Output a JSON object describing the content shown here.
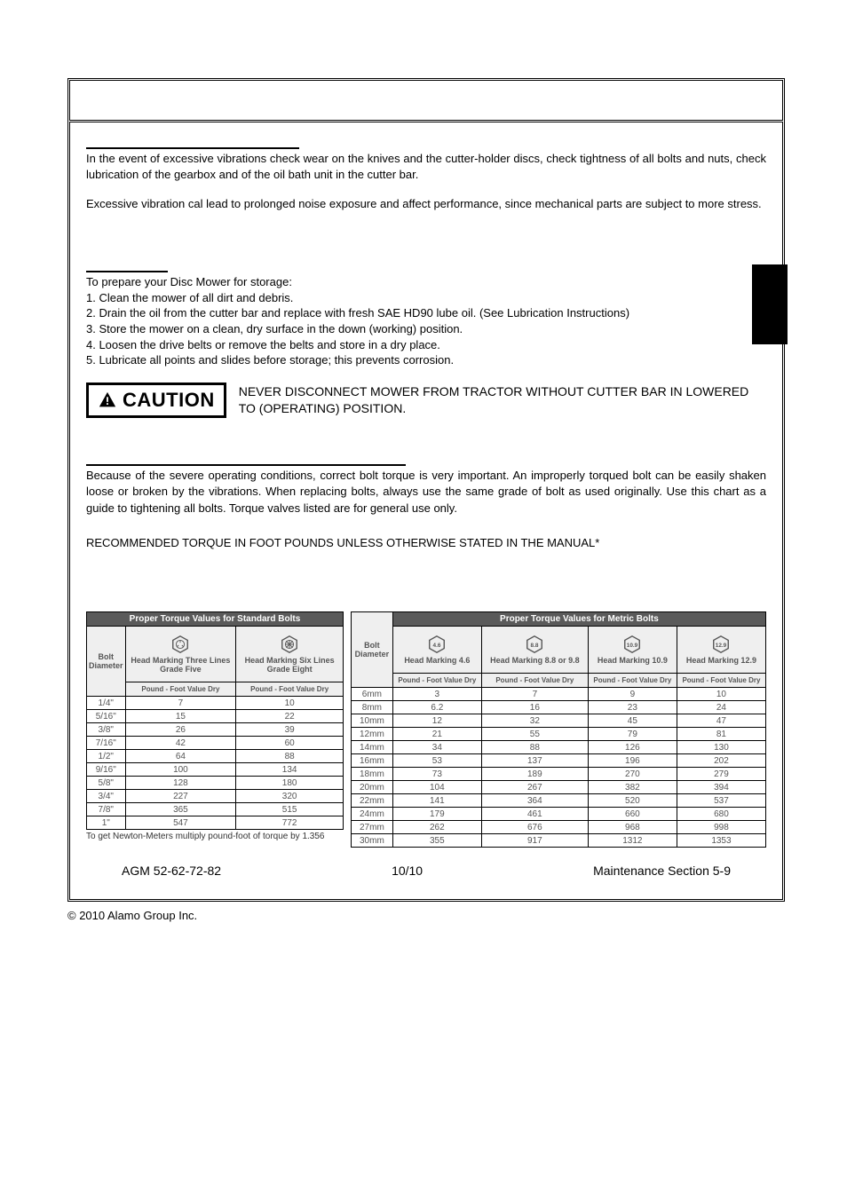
{
  "section_vibrations": {
    "para1": "In the event of excessive vibrations check wear on the knives and the cutter-holder discs, check tightness of all bolts and nuts, check lubrication of the gearbox and of the oil bath unit in the cutter bar.",
    "para2": "Excessive vibration cal lead to prolonged noise exposure and affect performance, since mechanical parts are subject to more stress."
  },
  "section_storage": {
    "intro": "To prepare your Disc Mower for storage:",
    "items": [
      "1. Clean the mower of all dirt and debris.",
      "2. Drain the oil from the cutter bar and replace with fresh SAE HD90 lube oil. (See Lubrication Instructions)",
      "3. Store the mower on a clean, dry surface in the down (working) position.",
      "4. Loosen the drive belts or remove the belts and store in a dry place.",
      "5. Lubricate all points and slides before storage; this prevents corrosion."
    ]
  },
  "caution": {
    "label": "CAUTION",
    "text": "NEVER DISCONNECT MOWER FROM TRACTOR WITHOUT CUTTER BAR IN LOWERED TO (OPERATING) POSITION."
  },
  "section_torque": {
    "para": "Because of the severe operating conditions, correct bolt torque is very important. An improperly torqued bolt can be easily shaken loose or broken by the vibrations. When replacing bolts, always use the same grade of bolt as used originally. Use this chart as a guide to tightening all bolts. Torque valves listed are for general use only.",
    "heading": "RECOMMENDED TORQUE IN FOOT POUNDS UNLESS OTHERWISE STATED IN THE MANUAL*"
  },
  "std_table": {
    "title": "Proper Torque Values for Standard Bolts",
    "col_dia": "Bolt\nDiameter",
    "col1_h": "Head Marking Three Lines Grade Five",
    "col2_h": "Head Marking Six Lines Grade Eight",
    "sub": "Pound - Foot Value Dry",
    "rows": [
      {
        "d": "1/4\"",
        "a": "7",
        "b": "10"
      },
      {
        "d": "5/16\"",
        "a": "15",
        "b": "22"
      },
      {
        "d": "3/8\"",
        "a": "26",
        "b": "39"
      },
      {
        "d": "7/16\"",
        "a": "42",
        "b": "60"
      },
      {
        "d": "1/2\"",
        "a": "64",
        "b": "88"
      },
      {
        "d": "9/16\"",
        "a": "100",
        "b": "134"
      },
      {
        "d": "5/8\"",
        "a": "128",
        "b": "180"
      },
      {
        "d": "3/4\"",
        "a": "227",
        "b": "320"
      },
      {
        "d": "7/8\"",
        "a": "365",
        "b": "515"
      },
      {
        "d": "1\"",
        "a": "547",
        "b": "772"
      }
    ],
    "note": "To get Newton-Meters multiply pound-foot of torque by 1.356"
  },
  "metric_table": {
    "title": "Proper Torque Values for Metric Bolts",
    "col_dia": "Bolt\nDiameter",
    "cols": [
      {
        "num": "4.6",
        "label": "Head Marking 4.6"
      },
      {
        "num": "8.8",
        "label": "Head Marking 8.8 or 9.8"
      },
      {
        "num": "10.9",
        "label": "Head Marking 10.9"
      },
      {
        "num": "12.9",
        "label": "Head Marking 12.9"
      }
    ],
    "sub": "Pound - Foot Value Dry",
    "rows": [
      {
        "d": "6mm",
        "v": [
          "3",
          "7",
          "9",
          "10"
        ]
      },
      {
        "d": "8mm",
        "v": [
          "6.2",
          "16",
          "23",
          "24"
        ]
      },
      {
        "d": "10mm",
        "v": [
          "12",
          "32",
          "45",
          "47"
        ]
      },
      {
        "d": "12mm",
        "v": [
          "21",
          "55",
          "79",
          "81"
        ]
      },
      {
        "d": "14mm",
        "v": [
          "34",
          "88",
          "126",
          "130"
        ]
      },
      {
        "d": "16mm",
        "v": [
          "53",
          "137",
          "196",
          "202"
        ]
      },
      {
        "d": "18mm",
        "v": [
          "73",
          "189",
          "270",
          "279"
        ]
      },
      {
        "d": "20mm",
        "v": [
          "104",
          "267",
          "382",
          "394"
        ]
      },
      {
        "d": "22mm",
        "v": [
          "141",
          "364",
          "520",
          "537"
        ]
      },
      {
        "d": "24mm",
        "v": [
          "179",
          "461",
          "660",
          "680"
        ]
      },
      {
        "d": "27mm",
        "v": [
          "262",
          "676",
          "968",
          "998"
        ]
      },
      {
        "d": "30mm",
        "v": [
          "355",
          "917",
          "1312",
          "1353"
        ]
      }
    ]
  },
  "footer": {
    "left": "AGM 52-62-72-82",
    "center": "10/10",
    "right": "Maintenance Section 5-9"
  },
  "copyright": "© 2010 Alamo Group Inc."
}
